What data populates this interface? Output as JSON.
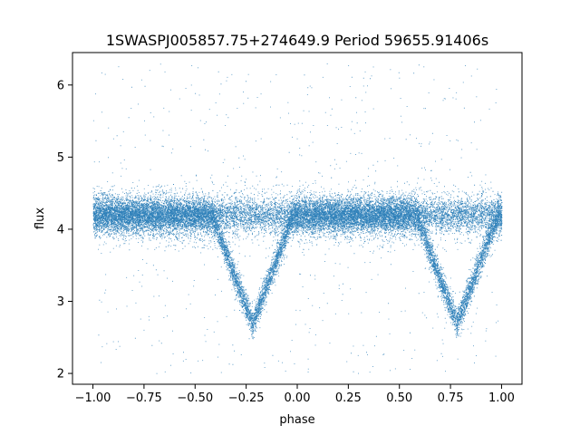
{
  "chart_data": {
    "type": "scatter",
    "title": "1SWASPJ005857.75+274649.9 Period 59655.91406s",
    "xlabel": "phase",
    "ylabel": "flux",
    "xlim": [
      -1.1,
      1.1
    ],
    "ylim": [
      1.85,
      6.45
    ],
    "x_ticks": [
      -1.0,
      -0.75,
      -0.5,
      -0.25,
      0.0,
      0.25,
      0.5,
      0.75,
      1.0
    ],
    "x_tick_labels": [
      "−1.00",
      "−0.75",
      "−0.50",
      "−0.25",
      "0.00",
      "0.25",
      "0.50",
      "0.75",
      "1.00"
    ],
    "y_ticks": [
      2,
      3,
      4,
      5,
      6
    ],
    "y_tick_labels": [
      "2",
      "3",
      "4",
      "5",
      "6"
    ],
    "grid": false,
    "point_color": "#1f77b4",
    "series": [
      {
        "baseline_flux": 4.2,
        "phase_range": [
          -1.0,
          1.0
        ],
        "eclipses": [
          {
            "center_phase": -0.22,
            "min_flux": 2.7
          },
          {
            "center_phase": 0.78,
            "min_flux": 2.7
          }
        ]
      }
    ]
  }
}
